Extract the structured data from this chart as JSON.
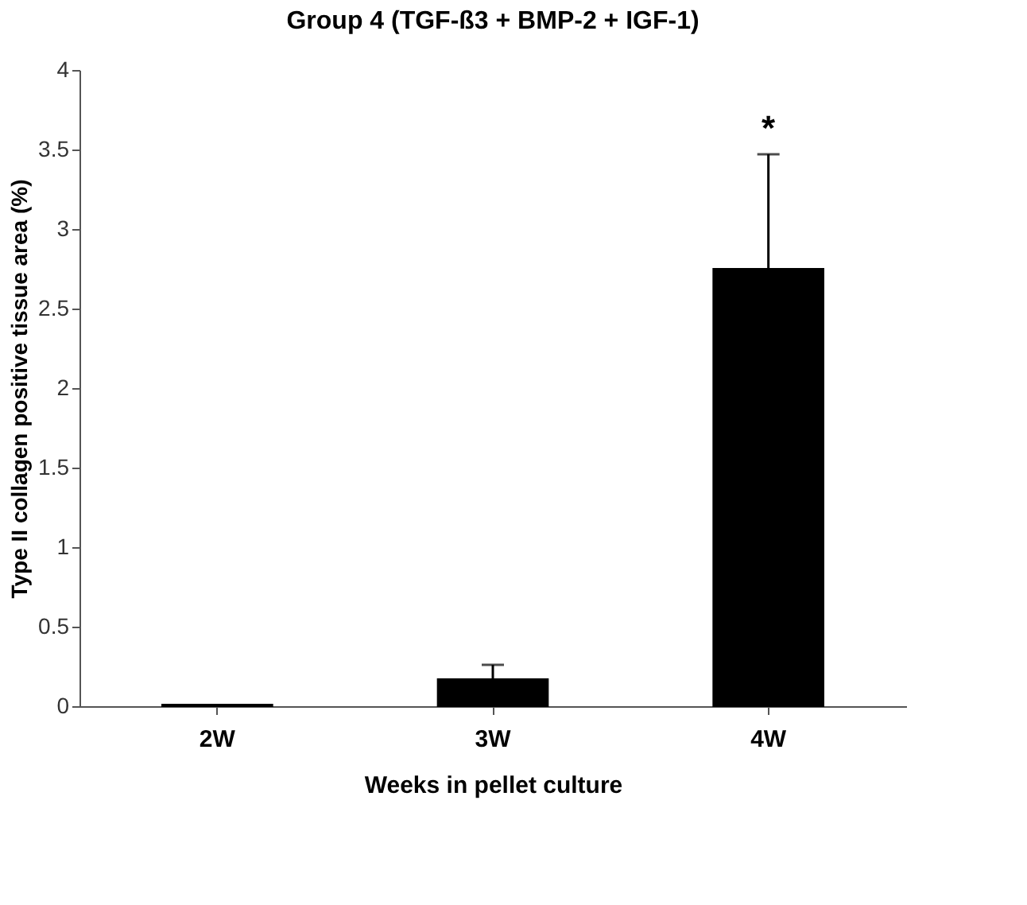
{
  "chart_data": {
    "type": "bar",
    "title": "Group 4 (TGF-ß3 + BMP-2 + IGF-1)",
    "xlabel": "Weeks in pellet culture",
    "ylabel": "Type II collagen positive tissue area (%)",
    "categories": [
      "2W",
      "3W",
      "4W"
    ],
    "values": [
      0.01,
      0.17,
      2.75
    ],
    "errors": [
      null,
      0.09,
      0.72
    ],
    "color": "#000000",
    "ylim": [
      0,
      4
    ],
    "yticks": [
      0,
      0.5,
      1,
      1.5,
      2,
      2.5,
      3,
      3.5,
      4
    ],
    "grid": false,
    "annotations": [
      "*"
    ]
  }
}
